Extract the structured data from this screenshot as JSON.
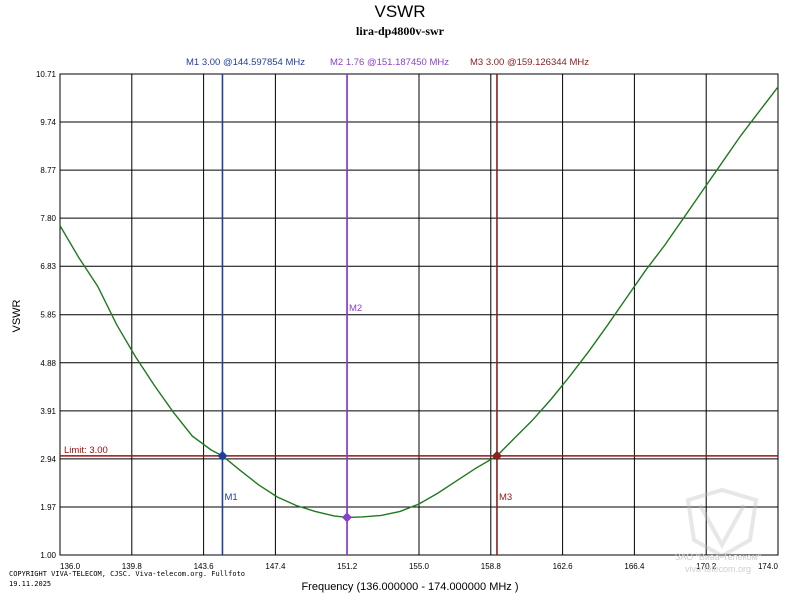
{
  "chart_data": {
    "type": "line",
    "title": "VSWR",
    "subtitle": "lira-dp4800v-swr",
    "xlabel": "Frequency (136.000000 - 174.000000 MHz )",
    "ylabel": "VSWR",
    "xlim": [
      136.0,
      174.0
    ],
    "ylim": [
      1.0,
      10.71
    ],
    "x_ticks": [
      "136.0",
      "139.8",
      "143.6",
      "147.4",
      "151.2",
      "155.0",
      "158.8",
      "162.6",
      "166.4",
      "170.2",
      "174.0"
    ],
    "y_ticks": [
      "1.00",
      "1.97",
      "2.94",
      "3.91",
      "4.88",
      "5.85",
      "6.83",
      "7.80",
      "8.77",
      "9.74",
      "10.71"
    ],
    "limit": {
      "label": "Limit: 3.00",
      "value": 3.0,
      "color": "#a01010"
    },
    "markers": [
      {
        "name": "M1",
        "freq": 144.597854,
        "value": 3.0,
        "readout": "M1   3.00 @144.597854 MHz",
        "color": "#1f3fa0"
      },
      {
        "name": "M2",
        "freq": 151.18745,
        "value": 1.76,
        "readout": "M2   1.76 @151.187450 MHz",
        "color": "#8a3fd0"
      },
      {
        "name": "M3",
        "freq": 159.126344,
        "value": 3.0,
        "readout": "M3   3.00 @159.126344 MHz",
        "color": "#8b2020"
      }
    ],
    "series": [
      {
        "name": "VSWR",
        "color": "#1f7a1f",
        "x": [
          136.0,
          137.0,
          138.0,
          139.0,
          140.0,
          141.0,
          142.0,
          143.0,
          144.0,
          144.6,
          145.5,
          146.5,
          147.5,
          148.5,
          149.5,
          150.5,
          151.2,
          152.0,
          153.0,
          154.0,
          155.0,
          156.0,
          157.0,
          158.0,
          159.13,
          160.0,
          161.0,
          162.0,
          163.0,
          164.0,
          165.0,
          166.0,
          167.0,
          168.0,
          169.0,
          170.0,
          171.0,
          172.0,
          173.0,
          174.0
        ],
        "values": [
          7.65,
          7.0,
          6.42,
          5.65,
          5.0,
          4.42,
          3.88,
          3.4,
          3.12,
          3.0,
          2.72,
          2.42,
          2.17,
          2.0,
          1.88,
          1.79,
          1.76,
          1.77,
          1.8,
          1.88,
          2.03,
          2.25,
          2.5,
          2.75,
          3.0,
          3.34,
          3.72,
          4.15,
          4.62,
          5.12,
          5.65,
          6.2,
          6.75,
          7.25,
          7.8,
          8.35,
          8.9,
          9.45,
          9.95,
          10.45
        ]
      }
    ]
  },
  "footer": {
    "copyright": "COPYRIGHT VIVA-TELECOM, CJSC. Viva-telecom.org. Fullfoto",
    "date": "19.11.2025"
  },
  "watermark": {
    "company": "ЗАО \"Вива-Телеком\"",
    "site": "viva-telecom.org"
  }
}
